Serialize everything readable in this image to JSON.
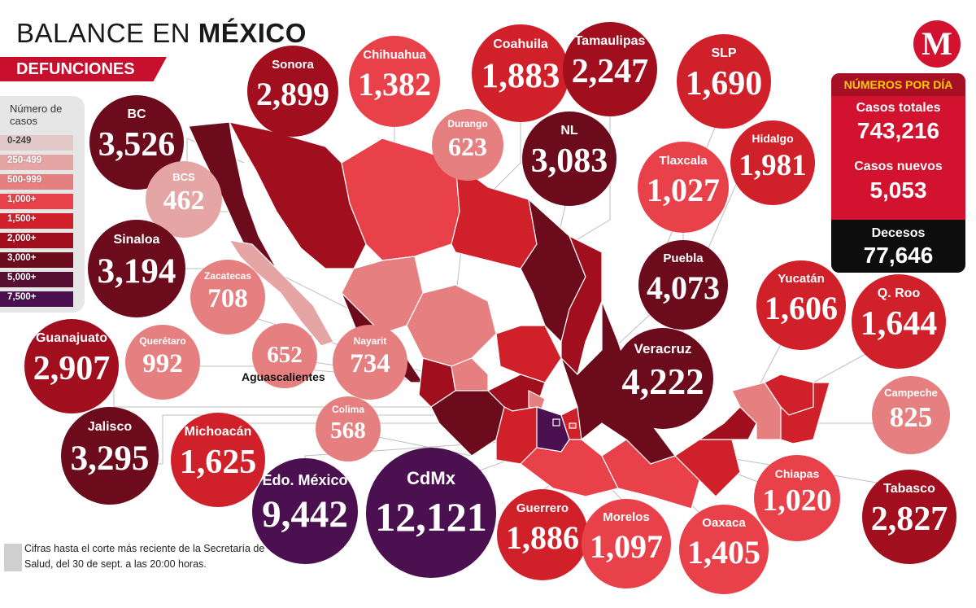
{
  "header": {
    "title_regular": "BALANCE EN ",
    "title_bold": "MÉXICO",
    "subtitle": "DEFUNCIONES",
    "logo_letter": "M"
  },
  "legend": {
    "title": "Número de casos",
    "items": [
      {
        "label": "0-249",
        "color": "#e3c8c8"
      },
      {
        "label": "250-499",
        "color": "#e6a5a5"
      },
      {
        "label": "500-999",
        "color": "#e67f7f"
      },
      {
        "label": "1,000+",
        "color": "#e8414a"
      },
      {
        "label": "1,500+",
        "color": "#d0202a"
      },
      {
        "label": "2,000+",
        "color": "#a10f1e"
      },
      {
        "label": "3,000+",
        "color": "#6b0b1c"
      },
      {
        "label": "5,000+",
        "color": "#571033"
      },
      {
        "label": "7,500+",
        "color": "#4a1050"
      }
    ]
  },
  "stats": {
    "header": "NÚMEROS POR DÍA",
    "total_label": "Casos totales",
    "total_value": "743,216",
    "new_label": "Casos nuevos",
    "new_value": "5,053",
    "deaths_label": "Decesos",
    "deaths_value": "77,646"
  },
  "states": [
    {
      "name": "BC",
      "value": "3,526",
      "color": "#6b0b1c"
    },
    {
      "name": "Sonora",
      "value": "2,899",
      "color": "#a10f1e"
    },
    {
      "name": "Chihuahua",
      "value": "1,382",
      "color": "#e8414a"
    },
    {
      "name": "Coahuila",
      "value": "1,883",
      "color": "#d0202a"
    },
    {
      "name": "Tamaulipas",
      "value": "2,247",
      "color": "#a10f1e"
    },
    {
      "name": "SLP",
      "value": "1,690",
      "color": "#d0202a"
    },
    {
      "name": "Durango",
      "value": "623",
      "color": "#e67f7f"
    },
    {
      "name": "NL",
      "value": "3,083",
      "color": "#6b0b1c"
    },
    {
      "name": "Hidalgo",
      "value": "1,981",
      "color": "#d0202a"
    },
    {
      "name": "BCS",
      "value": "462",
      "color": "#e6a5a5"
    },
    {
      "name": "Tlaxcala",
      "value": "1,027",
      "color": "#e8414a"
    },
    {
      "name": "Sinaloa",
      "value": "3,194",
      "color": "#6b0b1c"
    },
    {
      "name": "Zacatecas",
      "value": "708",
      "color": "#e67f7f"
    },
    {
      "name": "Puebla",
      "value": "4,073",
      "color": "#6b0b1c"
    },
    {
      "name": "Yucatán",
      "value": "1,606",
      "color": "#d0202a"
    },
    {
      "name": "Q. Roo",
      "value": "1,644",
      "color": "#d0202a"
    },
    {
      "name": "Querétaro",
      "value": "992",
      "color": "#e67f7f"
    },
    {
      "name": "",
      "value": "652",
      "color": "#e67f7f"
    },
    {
      "name": "Nayarit",
      "value": "734",
      "color": "#e67f7f"
    },
    {
      "name": "Guanajuato",
      "value": "2,907",
      "color": "#a10f1e"
    },
    {
      "name": "Veracruz",
      "value": "4,222",
      "color": "#6b0b1c"
    },
    {
      "name": "Campeche",
      "value": "825",
      "color": "#e67f7f"
    },
    {
      "name": "Colima",
      "value": "568",
      "color": "#e67f7f"
    },
    {
      "name": "Jalisco",
      "value": "3,295",
      "color": "#6b0b1c"
    },
    {
      "name": "Michoacán",
      "value": "1,625",
      "color": "#d0202a"
    },
    {
      "name": "Chiapas",
      "value": "1,020",
      "color": "#e8414a"
    },
    {
      "name": "Tabasco",
      "value": "2,827",
      "color": "#a10f1e"
    },
    {
      "name": "Edo. México",
      "value": "9,442",
      "color": "#4a1050"
    },
    {
      "name": "CdMx",
      "value": "12,121",
      "color": "#4a1050"
    },
    {
      "name": "Guerrero",
      "value": "1,886",
      "color": "#d0202a"
    },
    {
      "name": "Morelos",
      "value": "1,097",
      "color": "#e8414a"
    },
    {
      "name": "Oaxaca",
      "value": "1,405",
      "color": "#e8414a"
    }
  ],
  "aguascalientes_label": "Aguascalientes",
  "footnote": "Cifras hasta el corte más reciente de la Secretaría de Salud, del 30 de sept. a las 20:00 horas."
}
